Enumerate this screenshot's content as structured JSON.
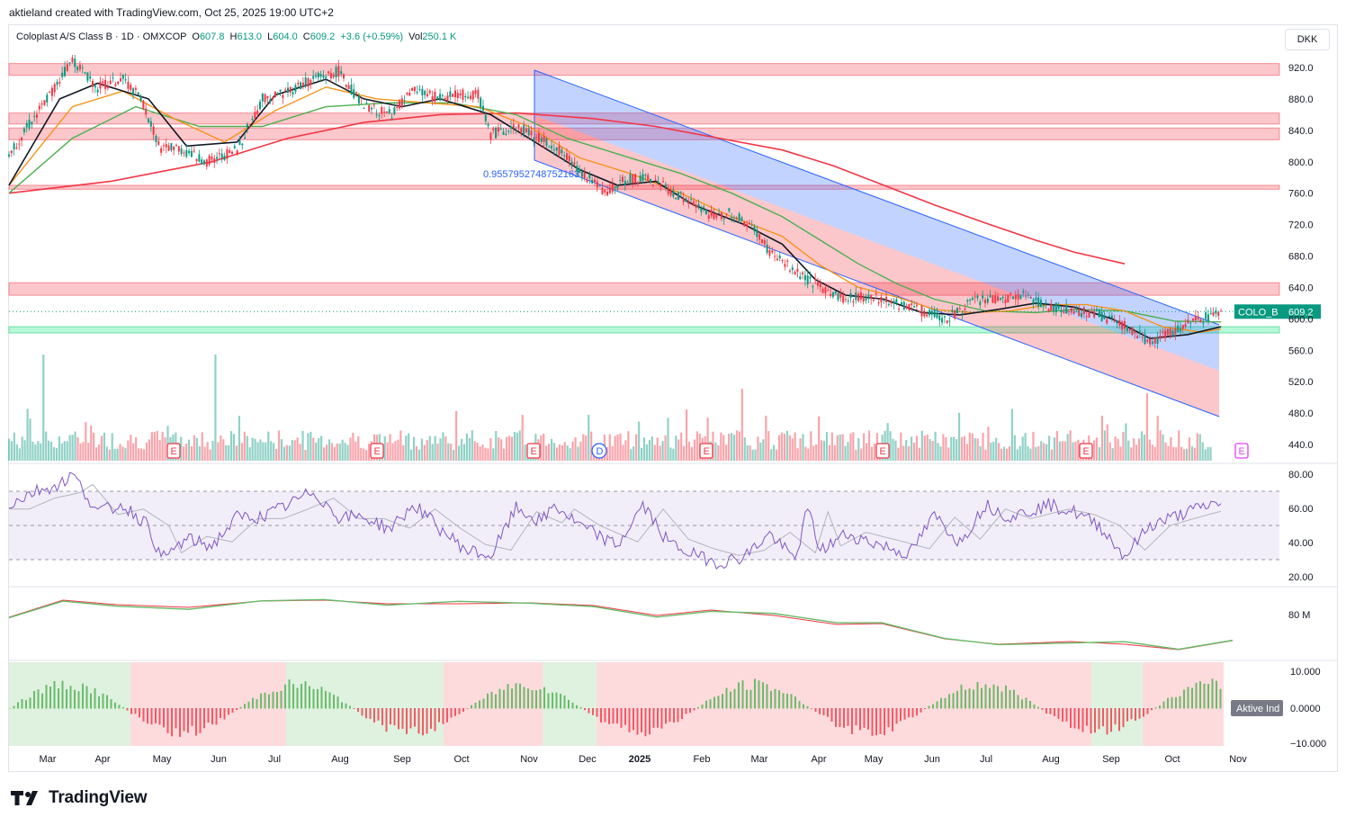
{
  "attribution": "aktieland created with TradingView.com, Oct 25, 2025 19:00 UTC+2",
  "legend": {
    "symbol": "Coloplast A/S Class B · 1D · OMXCOP",
    "o_label": "O",
    "o": "607.8",
    "h_label": "H",
    "h": "613.0",
    "l_label": "L",
    "l": "604.0",
    "c_label": "C",
    "c": "609.2",
    "change": "+3.6 (+0.59%)",
    "vol_label": "Vol",
    "vol": "250.1 K"
  },
  "currency": "DKK",
  "brand": "TradingView",
  "colors": {
    "up": "#089981",
    "down": "#f23645",
    "channel_upper": "#2962ff",
    "ma_black": "#131722",
    "ma_orange": "#f7931a",
    "ma_green": "#4caf50",
    "ma_red": "#f23645",
    "rsi": "#7e57c2"
  },
  "chart_data": {
    "type": "line",
    "main": {
      "y_ticks": [
        "920.0",
        "880.0",
        "840.0",
        "800.0",
        "760.0",
        "720.0",
        "680.0",
        "640.0",
        "600.0",
        "560.0",
        "520.0",
        "480.0",
        "440.0"
      ],
      "last_price_label": "COLO_B",
      "last_price": "609.2",
      "channel_label": "0.9557952748752163",
      "resistance_zones": [
        [
          910,
          925
        ],
        [
          848,
          862
        ],
        [
          828,
          843
        ],
        [
          765,
          770
        ],
        [
          630,
          646
        ]
      ],
      "support_zones": [
        [
          582,
          590
        ]
      ],
      "price_path": [
        [
          0,
          810
        ],
        [
          15,
          880
        ],
        [
          25,
          930
        ],
        [
          35,
          895
        ],
        [
          45,
          905
        ],
        [
          52,
          880
        ],
        [
          60,
          815
        ],
        [
          65,
          820
        ],
        [
          78,
          800
        ],
        [
          90,
          815
        ],
        [
          100,
          880
        ],
        [
          110,
          890
        ],
        [
          120,
          905
        ],
        [
          130,
          915
        ],
        [
          140,
          870
        ],
        [
          150,
          860
        ],
        [
          160,
          890
        ],
        [
          170,
          880
        ],
        [
          175,
          885
        ],
        [
          185,
          885
        ],
        [
          190,
          835
        ],
        [
          200,
          845
        ],
        [
          215,
          820
        ],
        [
          225,
          790
        ],
        [
          235,
          760
        ],
        [
          245,
          780
        ],
        [
          255,
          775
        ],
        [
          265,
          755
        ],
        [
          278,
          730
        ],
        [
          285,
          735
        ],
        [
          295,
          710
        ],
        [
          300,
          685
        ],
        [
          310,
          660
        ],
        [
          320,
          640
        ],
        [
          330,
          625
        ],
        [
          340,
          630
        ],
        [
          350,
          620
        ],
        [
          360,
          610
        ],
        [
          370,
          600
        ],
        [
          380,
          622
        ],
        [
          390,
          625
        ],
        [
          400,
          630
        ],
        [
          410,
          615
        ],
        [
          420,
          610
        ],
        [
          430,
          605
        ],
        [
          440,
          590
        ],
        [
          450,
          570
        ],
        [
          460,
          585
        ],
        [
          470,
          600
        ],
        [
          478,
          609
        ]
      ],
      "ma_black": [
        [
          0,
          770
        ],
        [
          20,
          880
        ],
        [
          35,
          900
        ],
        [
          55,
          880
        ],
        [
          70,
          820
        ],
        [
          90,
          825
        ],
        [
          105,
          885
        ],
        [
          125,
          905
        ],
        [
          140,
          880
        ],
        [
          155,
          870
        ],
        [
          170,
          880
        ],
        [
          190,
          860
        ],
        [
          205,
          830
        ],
        [
          225,
          790
        ],
        [
          240,
          770
        ],
        [
          255,
          775
        ],
        [
          270,
          745
        ],
        [
          290,
          720
        ],
        [
          305,
          695
        ],
        [
          318,
          650
        ],
        [
          330,
          630
        ],
        [
          345,
          625
        ],
        [
          360,
          608
        ],
        [
          375,
          605
        ],
        [
          390,
          612
        ],
        [
          405,
          620
        ],
        [
          420,
          615
        ],
        [
          435,
          600
        ],
        [
          450,
          575
        ],
        [
          465,
          580
        ],
        [
          478,
          590
        ]
      ],
      "ma_orange": [
        [
          0,
          770
        ],
        [
          25,
          870
        ],
        [
          45,
          890
        ],
        [
          65,
          855
        ],
        [
          85,
          825
        ],
        [
          105,
          865
        ],
        [
          125,
          895
        ],
        [
          145,
          880
        ],
        [
          165,
          875
        ],
        [
          185,
          870
        ],
        [
          205,
          845
        ],
        [
          225,
          805
        ],
        [
          245,
          785
        ],
        [
          265,
          760
        ],
        [
          285,
          730
        ],
        [
          305,
          705
        ],
        [
          320,
          668
        ],
        [
          335,
          640
        ],
        [
          350,
          628
        ],
        [
          365,
          612
        ],
        [
          380,
          608
        ],
        [
          395,
          610
        ],
        [
          410,
          618
        ],
        [
          425,
          618
        ],
        [
          440,
          610
        ],
        [
          455,
          590
        ],
        [
          470,
          583
        ],
        [
          478,
          587
        ]
      ],
      "ma_green": [
        [
          0,
          760
        ],
        [
          25,
          830
        ],
        [
          50,
          870
        ],
        [
          75,
          845
        ],
        [
          100,
          845
        ],
        [
          125,
          870
        ],
        [
          150,
          875
        ],
        [
          175,
          875
        ],
        [
          200,
          860
        ],
        [
          220,
          830
        ],
        [
          245,
          805
        ],
        [
          265,
          785
        ],
        [
          285,
          760
        ],
        [
          305,
          730
        ],
        [
          320,
          700
        ],
        [
          335,
          670
        ],
        [
          350,
          645
        ],
        [
          365,
          625
        ],
        [
          385,
          610
        ],
        [
          405,
          608
        ],
        [
          420,
          612
        ],
        [
          440,
          610
        ],
        [
          460,
          597
        ],
        [
          478,
          596
        ]
      ],
      "ma_red": [
        [
          0,
          760
        ],
        [
          40,
          775
        ],
        [
          80,
          800
        ],
        [
          110,
          830
        ],
        [
          140,
          850
        ],
        [
          170,
          860
        ],
        [
          200,
          862
        ],
        [
          230,
          855
        ],
        [
          255,
          845
        ],
        [
          280,
          830
        ],
        [
          305,
          815
        ],
        [
          325,
          795
        ],
        [
          345,
          770
        ],
        [
          365,
          745
        ],
        [
          385,
          722
        ],
        [
          405,
          700
        ],
        [
          420,
          685
        ],
        [
          440,
          670
        ]
      ]
    },
    "x_ticks": [
      "Mar",
      "Apr",
      "May",
      "Jun",
      "Jul",
      "Aug",
      "Sep",
      "Oct",
      "Nov",
      "Dec",
      "2025",
      "Feb",
      "Mar",
      "Apr",
      "May",
      "Jun",
      "Jul",
      "Aug",
      "Sep",
      "Oct",
      "Nov"
    ],
    "event_markers": [
      "E",
      "E",
      "E",
      "D",
      "E",
      "E",
      "E",
      "E"
    ],
    "rsi": {
      "y_ticks": [
        "80.00",
        "60.00",
        "40.00",
        "20.00"
      ],
      "band": [
        30,
        70
      ],
      "values": [
        [
          0,
          62
        ],
        [
          10,
          70
        ],
        [
          20,
          74
        ],
        [
          25,
          80
        ],
        [
          35,
          58
        ],
        [
          45,
          62
        ],
        [
          55,
          50
        ],
        [
          60,
          30
        ],
        [
          70,
          42
        ],
        [
          80,
          38
        ],
        [
          90,
          55
        ],
        [
          100,
          55
        ],
        [
          110,
          62
        ],
        [
          120,
          70
        ],
        [
          130,
          55
        ],
        [
          140,
          55
        ],
        [
          150,
          48
        ],
        [
          160,
          62
        ],
        [
          170,
          48
        ],
        [
          180,
          36
        ],
        [
          190,
          32
        ],
        [
          200,
          60
        ],
        [
          210,
          52
        ],
        [
          215,
          62
        ],
        [
          225,
          50
        ],
        [
          240,
          38
        ],
        [
          250,
          62
        ],
        [
          260,
          40
        ],
        [
          270,
          33
        ],
        [
          280,
          28
        ],
        [
          290,
          32
        ],
        [
          300,
          45
        ],
        [
          310,
          30
        ],
        [
          315,
          60
        ],
        [
          320,
          35
        ],
        [
          330,
          45
        ],
        [
          345,
          38
        ],
        [
          355,
          33
        ],
        [
          365,
          56
        ],
        [
          375,
          40
        ],
        [
          385,
          62
        ],
        [
          395,
          55
        ],
        [
          410,
          62
        ],
        [
          420,
          58
        ],
        [
          430,
          50
        ],
        [
          440,
          32
        ],
        [
          450,
          50
        ],
        [
          465,
          58
        ],
        [
          478,
          64
        ]
      ]
    },
    "obv": {
      "y_ticks": [
        "80 M"
      ]
    },
    "oscillator": {
      "y_ticks": [
        "10.000",
        "0.0000",
        "−10.000"
      ],
      "label": "Aktive Ind"
    }
  }
}
